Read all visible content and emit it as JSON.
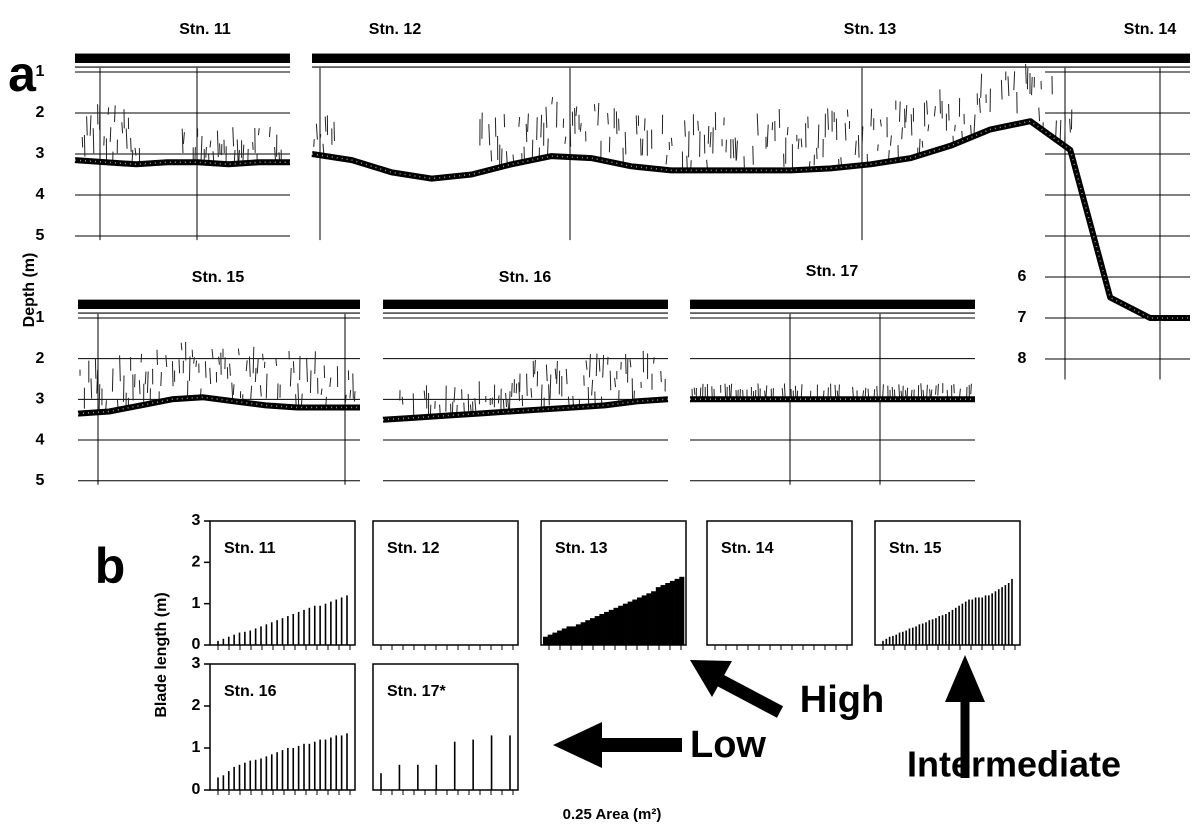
{
  "panel_labels": [
    "a",
    "b"
  ],
  "annotations": [
    "High",
    "Low",
    "Intermediate"
  ],
  "chart_data": [
    {
      "type": "echogram",
      "titles": [
        "Stn. 11"
      ],
      "ylabel": "Depth (m)",
      "ylim": [
        0.5,
        5.1
      ],
      "yticks": [
        1,
        2,
        3,
        4,
        5
      ],
      "bottom": [
        3.15,
        3.2,
        3.25,
        3.2,
        3.2,
        3.25,
        3.2,
        3.2
      ]
    },
    {
      "type": "echogram",
      "titles": [
        "Stn. 12",
        "Stn. 13",
        "Stn. 14"
      ],
      "ylim": [
        0.5,
        8.5
      ],
      "yticks": [
        6,
        7,
        8
      ],
      "bottom": [
        3.0,
        3.15,
        3.45,
        3.6,
        3.5,
        3.25,
        3.05,
        3.1,
        3.3,
        3.4,
        3.4,
        3.4,
        3.4,
        3.35,
        3.25,
        3.1,
        2.8,
        2.4,
        2.2,
        2.9,
        6.5,
        7.0,
        7.0
      ]
    },
    {
      "type": "echogram",
      "titles": [
        "Stn. 15"
      ],
      "ylim": [
        0.5,
        5.1
      ],
      "yticks": [
        1,
        2,
        3,
        4,
        5
      ],
      "bottom": [
        3.35,
        3.3,
        3.15,
        3.0,
        2.95,
        3.05,
        3.15,
        3.2,
        3.2,
        3.2
      ]
    },
    {
      "type": "echogram",
      "titles": [
        "Stn. 16"
      ],
      "ylim": [
        0.5,
        5.1
      ],
      "bottom": [
        3.5,
        3.45,
        3.4,
        3.35,
        3.3,
        3.25,
        3.2,
        3.15,
        3.05,
        3.0
      ]
    },
    {
      "type": "echogram",
      "titles": [
        "Stn. 17"
      ],
      "ylim": [
        0.5,
        5.1
      ],
      "bottom": [
        3.0,
        3.0,
        3.0,
        3.0,
        3.0,
        3.0,
        3.0,
        3.0
      ]
    },
    {
      "type": "bar",
      "title": "Stn. 11",
      "style": "line",
      "ylabel": "Blade length (m)",
      "ylim": [
        0,
        3
      ],
      "yticks": [
        0,
        1,
        2,
        3
      ],
      "values": [
        0.1,
        0.15,
        0.2,
        0.25,
        0.3,
        0.32,
        0.35,
        0.4,
        0.45,
        0.5,
        0.55,
        0.6,
        0.65,
        0.7,
        0.75,
        0.8,
        0.85,
        0.9,
        0.95,
        0.95,
        1.0,
        1.05,
        1.1,
        1.15,
        1.2
      ]
    },
    {
      "type": "bar",
      "title": "Stn. 12",
      "style": "line",
      "ylim": [
        0,
        3
      ],
      "values": []
    },
    {
      "type": "bar",
      "title": "Stn. 13",
      "style": "solid",
      "ylim": [
        0,
        3
      ],
      "xlabel": "0.25 Area (m²)",
      "values": [
        0.2,
        0.25,
        0.3,
        0.35,
        0.4,
        0.45,
        0.45,
        0.5,
        0.55,
        0.6,
        0.65,
        0.7,
        0.75,
        0.8,
        0.85,
        0.9,
        0.95,
        1.0,
        1.05,
        1.1,
        1.15,
        1.2,
        1.25,
        1.3,
        1.4,
        1.45,
        1.5,
        1.55,
        1.6,
        1.65
      ]
    },
    {
      "type": "bar",
      "title": "Stn. 14",
      "style": "line",
      "ylim": [
        0,
        3
      ],
      "values": []
    },
    {
      "type": "bar",
      "title": "Stn. 15",
      "style": "line",
      "ylim": [
        0,
        3
      ],
      "values": [
        0.1,
        0.15,
        0.2,
        0.22,
        0.25,
        0.3,
        0.32,
        0.35,
        0.4,
        0.42,
        0.45,
        0.5,
        0.52,
        0.55,
        0.6,
        0.62,
        0.65,
        0.7,
        0.72,
        0.75,
        0.8,
        0.85,
        0.9,
        0.95,
        1.0,
        1.05,
        1.1,
        1.1,
        1.15,
        1.15,
        1.15,
        1.2,
        1.2,
        1.25,
        1.3,
        1.35,
        1.4,
        1.45,
        1.5,
        1.6
      ]
    },
    {
      "type": "bar",
      "title": "Stn. 16",
      "style": "line",
      "ylim": [
        0,
        3
      ],
      "yticks": [
        0,
        1,
        2,
        3
      ],
      "values": [
        0.3,
        0.35,
        0.45,
        0.55,
        0.6,
        0.65,
        0.7,
        0.72,
        0.75,
        0.8,
        0.85,
        0.9,
        0.95,
        1.0,
        1.0,
        1.05,
        1.1,
        1.1,
        1.15,
        1.2,
        1.2,
        1.25,
        1.3,
        1.3,
        1.35
      ]
    },
    {
      "type": "bar",
      "title": "Stn. 17*",
      "style": "line",
      "ylim": [
        0,
        3
      ],
      "values": [
        0.4,
        0.6,
        0.6,
        0.6,
        1.15,
        1.2,
        1.3,
        1.3
      ]
    }
  ]
}
